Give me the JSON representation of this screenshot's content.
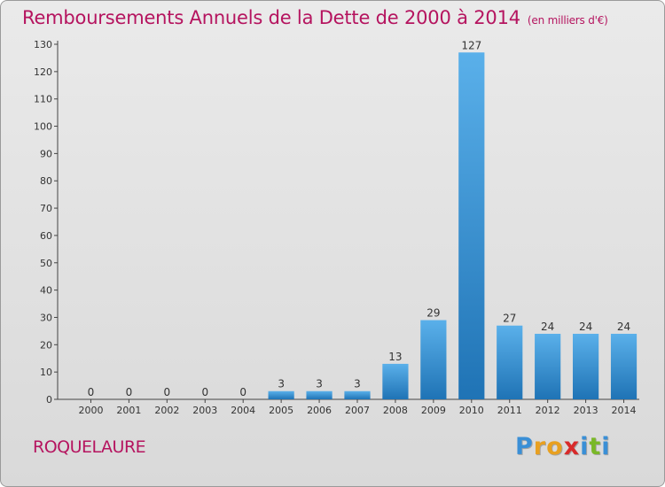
{
  "header": {
    "title": "Remboursements Annuels de la Dette de 2000 à 2014",
    "unit": "(en milliers d'€)"
  },
  "footer": {
    "commune": "ROQUELAURE",
    "logo_letters": [
      "P",
      "r",
      "o",
      "x",
      "i",
      "t",
      "i"
    ]
  },
  "colors": {
    "title": "#b5145f",
    "bar_top": "#5ab0ea",
    "bar_bottom": "#1f73b5",
    "logo": [
      "#3a8fd6",
      "#e8a020",
      "#e8a020",
      "#d82a2a",
      "#3a8fd6",
      "#7ab828",
      "#3a8fd6"
    ]
  },
  "chart_data": {
    "type": "bar",
    "categories": [
      "2000",
      "2001",
      "2002",
      "2003",
      "2004",
      "2005",
      "2006",
      "2007",
      "2008",
      "2009",
      "2010",
      "2011",
      "2012",
      "2013",
      "2014"
    ],
    "values": [
      0,
      0,
      0,
      0,
      0,
      3,
      3,
      3,
      13,
      29,
      127,
      27,
      24,
      24,
      24
    ],
    "data_labels": [
      "0",
      "0",
      "0",
      "0",
      "0",
      "3",
      "3",
      "3",
      "13",
      "29",
      "127",
      "27",
      "24",
      "24",
      "24"
    ],
    "ylim": [
      0,
      130
    ],
    "yticks": [
      0,
      10,
      20,
      30,
      40,
      50,
      60,
      70,
      80,
      90,
      100,
      110,
      120,
      130
    ],
    "grid": false,
    "legend": "none"
  }
}
